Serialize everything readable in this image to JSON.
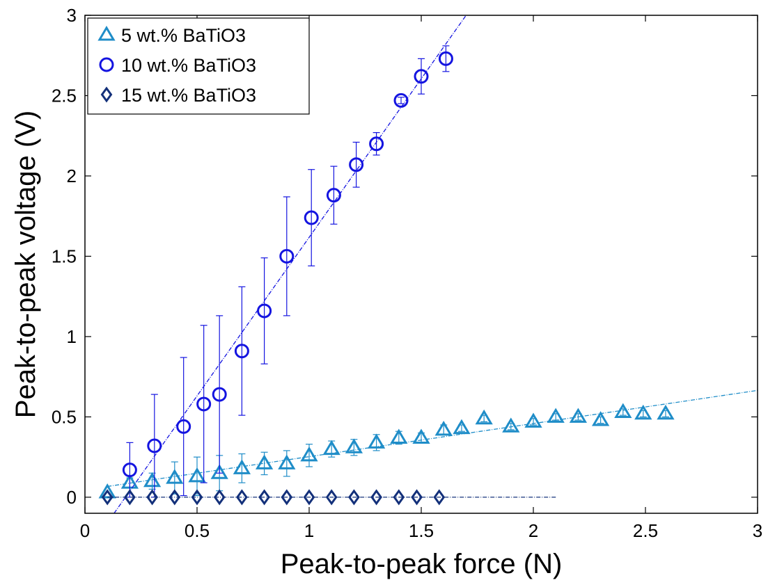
{
  "chart_data": {
    "type": "scatter",
    "title": "",
    "xlabel": "Peak-to-peak force (N)",
    "ylabel": "Peak-to-peak voltage (V)",
    "xlim": [
      0,
      3
    ],
    "ylim": [
      -0.1,
      3
    ],
    "x_ticks": [
      "0",
      "0.5",
      "1",
      "1.5",
      "2",
      "2.5",
      "3"
    ],
    "y_ticks": [
      "0",
      "0.5",
      "1",
      "1.5",
      "2",
      "2.5",
      "3"
    ],
    "grid": false,
    "legend_position": "top-left",
    "series": [
      {
        "name": "5 wt.% BaTiO3",
        "marker": "triangle",
        "color": "#1f8dc8",
        "fit": {
          "x": [
            0.1,
            3.0
          ],
          "y": [
            0.067,
            0.665
          ]
        },
        "points": [
          {
            "x": 0.1,
            "y": 0.03,
            "err": 0.0
          },
          {
            "x": 0.2,
            "y": 0.09,
            "err": 0.03
          },
          {
            "x": 0.3,
            "y": 0.1,
            "err": 0.05
          },
          {
            "x": 0.4,
            "y": 0.12,
            "err": 0.1
          },
          {
            "x": 0.5,
            "y": 0.13,
            "err": 0.12
          },
          {
            "x": 0.6,
            "y": 0.15,
            "err": 0.11
          },
          {
            "x": 0.7,
            "y": 0.18,
            "err": 0.09
          },
          {
            "x": 0.8,
            "y": 0.21,
            "err": 0.07
          },
          {
            "x": 0.9,
            "y": 0.21,
            "err": 0.08
          },
          {
            "x": 1.0,
            "y": 0.26,
            "err": 0.07
          },
          {
            "x": 1.1,
            "y": 0.3,
            "err": 0.05
          },
          {
            "x": 1.2,
            "y": 0.31,
            "err": 0.05
          },
          {
            "x": 1.3,
            "y": 0.34,
            "err": 0.05
          },
          {
            "x": 1.4,
            "y": 0.37,
            "err": 0.04
          },
          {
            "x": 1.5,
            "y": 0.37,
            "err": 0.03
          },
          {
            "x": 1.6,
            "y": 0.42,
            "err": 0.03
          },
          {
            "x": 1.68,
            "y": 0.43,
            "err": 0.02
          },
          {
            "x": 1.78,
            "y": 0.49,
            "err": 0.02
          },
          {
            "x": 1.9,
            "y": 0.44,
            "err": 0.02
          },
          {
            "x": 2.0,
            "y": 0.47,
            "err": 0.02
          },
          {
            "x": 2.1,
            "y": 0.5,
            "err": 0.02
          },
          {
            "x": 2.2,
            "y": 0.5,
            "err": 0.02
          },
          {
            "x": 2.3,
            "y": 0.48,
            "err": 0.02
          },
          {
            "x": 2.4,
            "y": 0.53,
            "err": 0.02
          },
          {
            "x": 2.49,
            "y": 0.52,
            "err": 0.02
          },
          {
            "x": 2.59,
            "y": 0.52,
            "err": 0.02
          }
        ]
      },
      {
        "name": "10 wt.% BaTiO3",
        "marker": "circle",
        "color": "#1414e0",
        "fit": {
          "x": [
            0.13,
            1.7
          ],
          "y": [
            -0.1,
            3.0
          ]
        },
        "points": [
          {
            "x": 0.2,
            "y": 0.17,
            "err": 0.17
          },
          {
            "x": 0.31,
            "y": 0.32,
            "err": 0.32
          },
          {
            "x": 0.44,
            "y": 0.44,
            "err": 0.43
          },
          {
            "x": 0.53,
            "y": 0.58,
            "err": 0.49
          },
          {
            "x": 0.6,
            "y": 0.64,
            "err": 0.49
          },
          {
            "x": 0.7,
            "y": 0.91,
            "err": 0.4
          },
          {
            "x": 0.8,
            "y": 1.16,
            "err": 0.33
          },
          {
            "x": 0.9,
            "y": 1.5,
            "err": 0.37
          },
          {
            "x": 1.01,
            "y": 1.74,
            "err": 0.3
          },
          {
            "x": 1.11,
            "y": 1.88,
            "err": 0.18
          },
          {
            "x": 1.21,
            "y": 2.07,
            "err": 0.14
          },
          {
            "x": 1.3,
            "y": 2.2,
            "err": 0.07
          },
          {
            "x": 1.41,
            "y": 2.47,
            "err": 0.02
          },
          {
            "x": 1.5,
            "y": 2.62,
            "err": 0.11
          },
          {
            "x": 1.61,
            "y": 2.73,
            "err": 0.08
          }
        ]
      },
      {
        "name": "15 wt.% BaTiO3",
        "marker": "diamond",
        "color": "#13307a",
        "fit": {
          "x": [
            0.1,
            2.1
          ],
          "y": [
            0.0,
            0.0
          ]
        },
        "points": [
          {
            "x": 0.1,
            "y": 0.0,
            "err": 0.0
          },
          {
            "x": 0.2,
            "y": 0.0,
            "err": 0.0
          },
          {
            "x": 0.3,
            "y": 0.0,
            "err": 0.0
          },
          {
            "x": 0.4,
            "y": 0.0,
            "err": 0.0
          },
          {
            "x": 0.5,
            "y": 0.0,
            "err": 0.0
          },
          {
            "x": 0.6,
            "y": 0.0,
            "err": 0.0
          },
          {
            "x": 0.7,
            "y": 0.0,
            "err": 0.0
          },
          {
            "x": 0.8,
            "y": 0.0,
            "err": 0.0
          },
          {
            "x": 0.9,
            "y": 0.0,
            "err": 0.0
          },
          {
            "x": 1.0,
            "y": 0.0,
            "err": 0.0
          },
          {
            "x": 1.1,
            "y": 0.0,
            "err": 0.0
          },
          {
            "x": 1.2,
            "y": 0.0,
            "err": 0.0
          },
          {
            "x": 1.3,
            "y": 0.0,
            "err": 0.0
          },
          {
            "x": 1.4,
            "y": 0.0,
            "err": 0.0
          },
          {
            "x": 1.48,
            "y": 0.0,
            "err": 0.0
          },
          {
            "x": 1.58,
            "y": 0.0,
            "err": 0.0
          }
        ]
      }
    ]
  }
}
